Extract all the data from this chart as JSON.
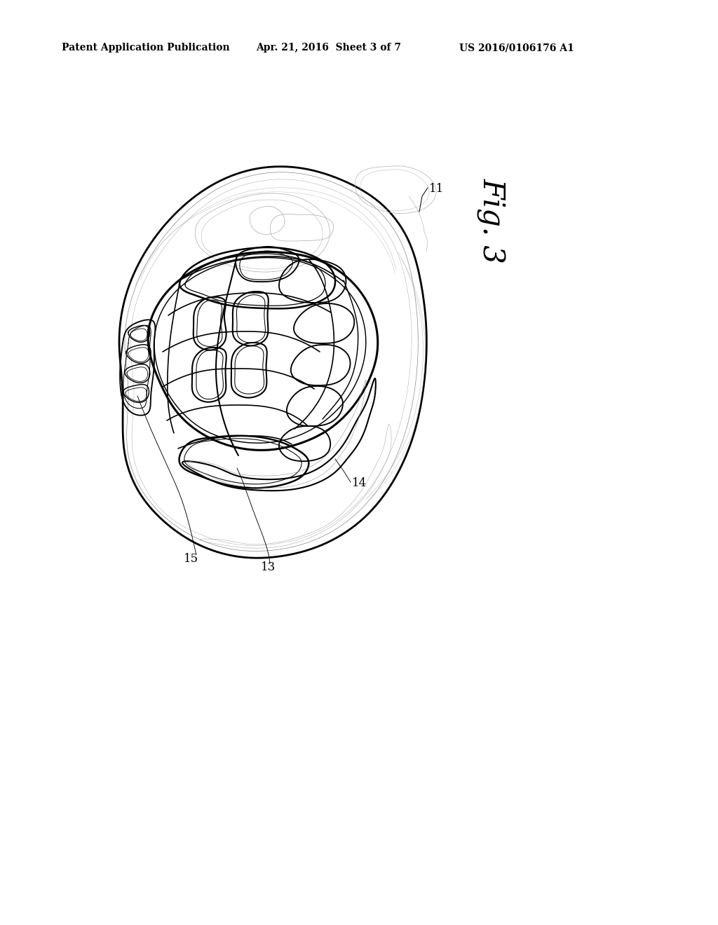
{
  "title_left": "Patent Application Publication",
  "title_mid": "Apr. 21, 2016  Sheet 3 of 7",
  "title_right": "US 2016/0106176 A1",
  "fig_label": "Fig. 3",
  "ref_11": "11",
  "ref_13": "13",
  "ref_14": "14",
  "ref_15": "15",
  "bg_color": "#ffffff",
  "line_color": "#000000",
  "gray_color": "#888888",
  "light_gray": "#aaaaaa",
  "lw_outer": 2.0,
  "lw_inner": 1.5,
  "lw_thin": 0.8,
  "lw_xthin": 0.5
}
